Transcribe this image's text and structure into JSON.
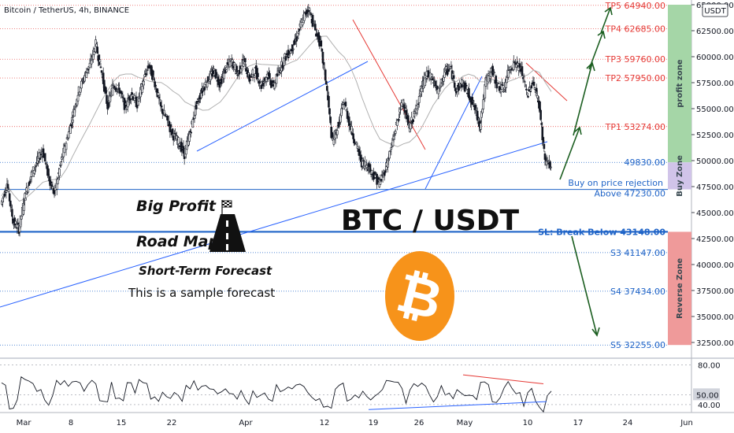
{
  "header": {
    "symbol_title": "Bitcoin / TetherUS, 4h, BINANCE",
    "currency_badge": "USDT"
  },
  "chart_data": {
    "type": "line",
    "title": "BTC / USDT",
    "price_axis": {
      "ylim": [
        31000,
        65500
      ],
      "ticks": [
        65000,
        62500,
        60000,
        57500,
        55000,
        52500,
        50000,
        47500,
        45000,
        42500,
        40000,
        37500,
        35000,
        32500
      ],
      "tick_labels": [
        "65000.00",
        "62500.00",
        "60000.00",
        "57500.00",
        "55000.00",
        "52500.00",
        "50000.00",
        "47500.00",
        "45000.00",
        "42500.00",
        "40000.00",
        "37500.00",
        "35000.00",
        "32500.00"
      ]
    },
    "time_axis": {
      "labels": [
        "Mar",
        "8",
        "15",
        "22",
        "Apr",
        "12",
        "19",
        "26",
        "May",
        "10",
        "17",
        "24",
        "Jun"
      ]
    },
    "levels": [
      {
        "name": "TP5",
        "price": 64940,
        "label": "TP5 64940.00",
        "color": "#e53935"
      },
      {
        "name": "TP4",
        "price": 62685,
        "label": "TP4 62685.00",
        "color": "#e53935"
      },
      {
        "name": "TP3",
        "price": 59760,
        "label": "TP3 59760.00",
        "color": "#e53935"
      },
      {
        "name": "TP2",
        "price": 57950,
        "label": "TP2 57950.00",
        "color": "#e53935"
      },
      {
        "name": "TP1",
        "price": 53274,
        "label": "TP1 53274.00",
        "color": "#e53935"
      },
      {
        "name": "entry-high",
        "price": 49830,
        "label": "49830.00",
        "color": "#1e63c7"
      },
      {
        "name": "entry-low",
        "price": 47230,
        "label": "Above 47230.00",
        "color": "#1e63c7"
      },
      {
        "name": "SL",
        "price": 43148,
        "label": "SL: Break Below 43148.00",
        "color": "#1e63c7"
      },
      {
        "name": "S3",
        "price": 41147,
        "label": "S3 41147.00",
        "color": "#1e63c7"
      },
      {
        "name": "S4",
        "price": 37434,
        "label": "S4 37434.00",
        "color": "#1e63c7"
      },
      {
        "name": "S5",
        "price": 32255,
        "label": "S5 32255.00",
        "color": "#1e63c7"
      }
    ],
    "buy_note": "Buy on price rejection",
    "zones": [
      {
        "label": "profit zone",
        "from": 49830,
        "to": 65000,
        "color": "#a5d6a7"
      },
      {
        "label": "Buy Zone",
        "from": 47230,
        "to": 49830,
        "color": "#d1c4e9"
      },
      {
        "label": "Reverse Zone",
        "from": 32255,
        "to": 43148,
        "color": "#ef9a9a"
      }
    ],
    "indicator": {
      "ticks": [
        80,
        50,
        40
      ],
      "tick_labels": [
        "80.00",
        "50.00",
        "40.00"
      ],
      "current_label": "50.00"
    },
    "price_series": [
      45800,
      47800,
      44200,
      43400,
      46500,
      48500,
      49800,
      51000,
      48500,
      46800,
      49500,
      51800,
      54000,
      56500,
      58000,
      59200,
      61200,
      58500,
      55200,
      57300,
      56800,
      55100,
      56500,
      55400,
      57600,
      59200,
      57500,
      55100,
      54000,
      52500,
      51800,
      50600,
      52800,
      55300,
      56800,
      57800,
      58600,
      57400,
      58900,
      59600,
      58300,
      59700,
      57800,
      58700,
      57200,
      58300,
      57100,
      58600,
      59900,
      60600,
      61800,
      63600,
      64700,
      62800,
      61200,
      57400,
      51800,
      53300,
      55700,
      53400,
      51600,
      49800,
      49500,
      48600,
      47800,
      49200,
      51200,
      53800,
      55800,
      53200,
      54500,
      56800,
      58300,
      57800,
      56600,
      58500,
      58900,
      56800,
      57500,
      56500,
      55200,
      53400,
      57600,
      58700,
      57200,
      56800,
      58900,
      59400,
      58700,
      56300,
      57600,
      55400,
      50100,
      49400
    ]
  },
  "annotations": {
    "big_profit": "Big Profit",
    "road_map": "Road Map",
    "short_term": "Short-Term Forecast",
    "sample_note": "This is a sample forecast",
    "logo_glyph": "₿"
  },
  "colors": {
    "tp_red": "#e53935",
    "support_blue": "#1e63c7",
    "trend_blue": "#2962ff",
    "arrow_green": "#1b5e20",
    "candle": "#131722",
    "coin_orange": "#f7931a"
  }
}
